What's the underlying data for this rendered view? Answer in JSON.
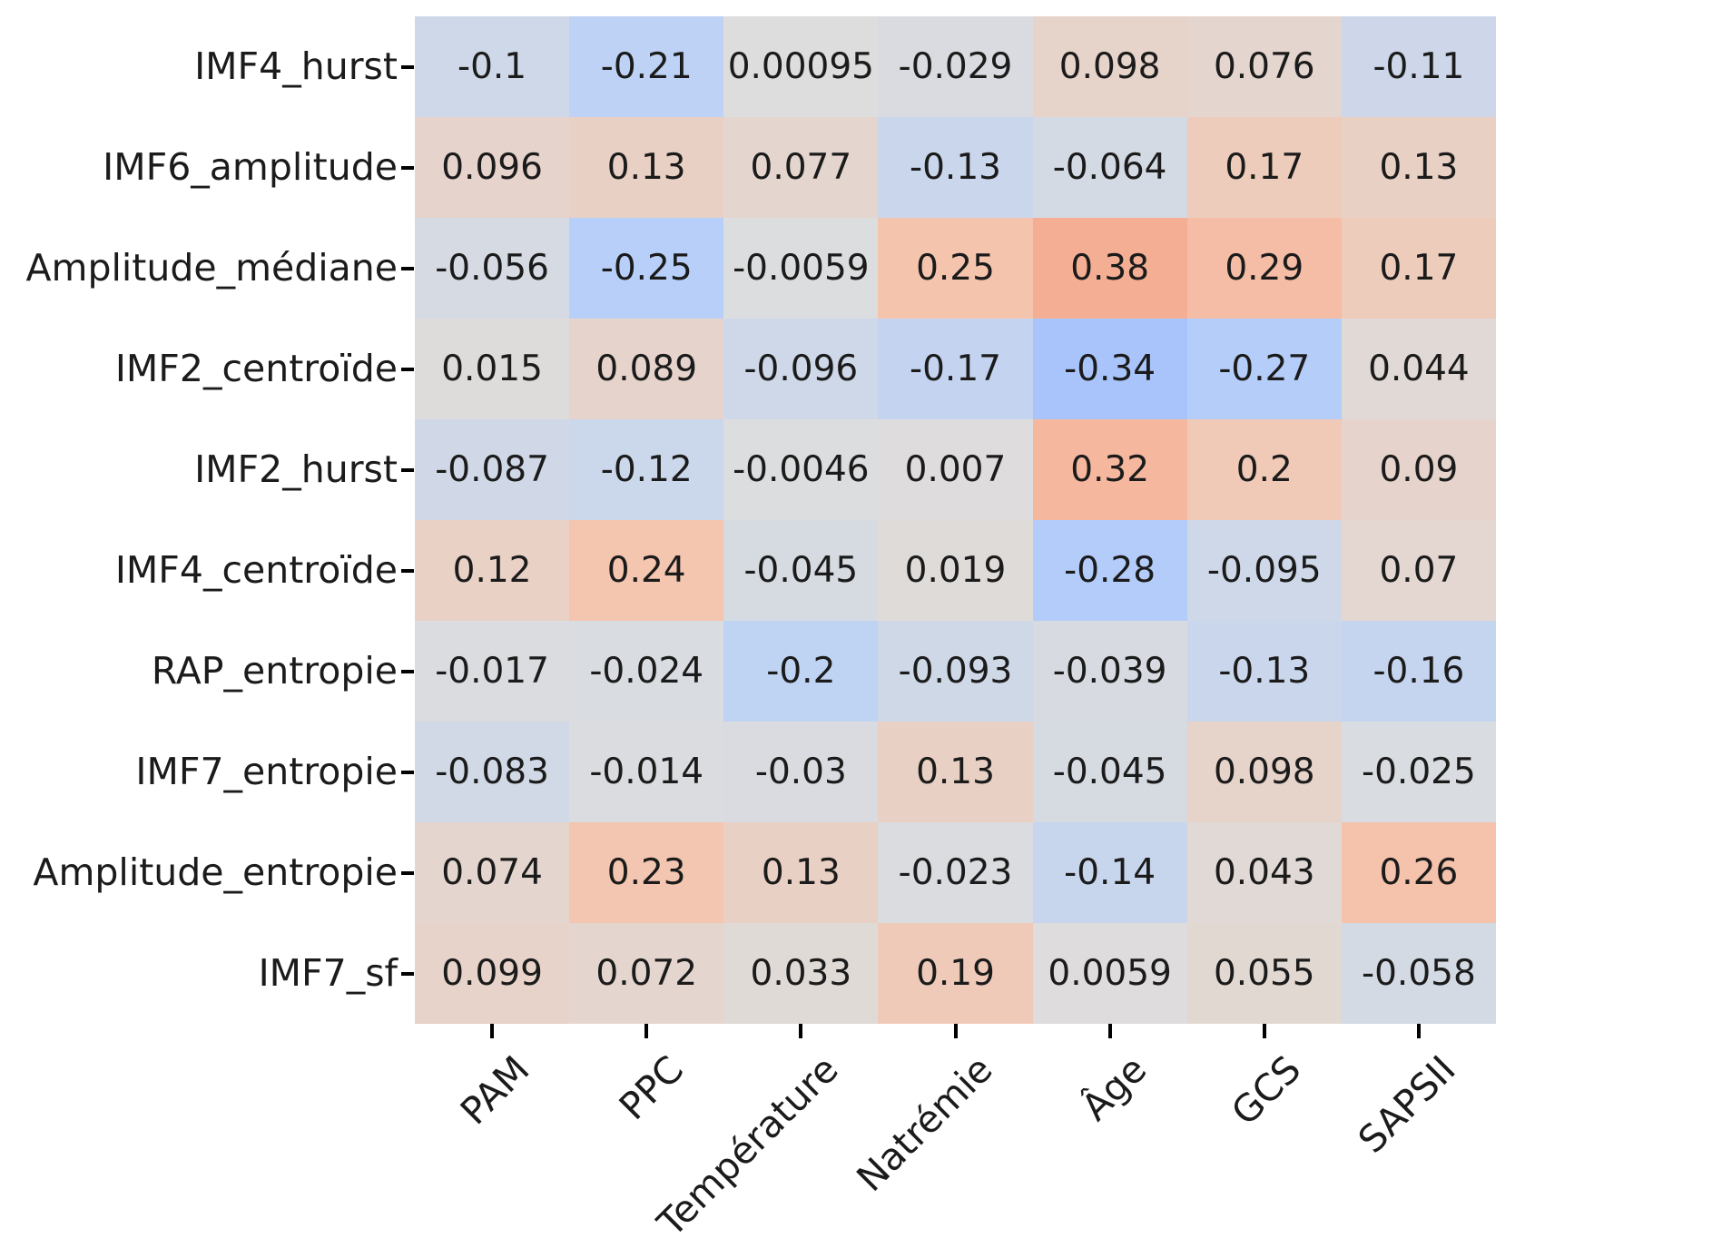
{
  "figure": {
    "background": "#ffffff",
    "text_color": "#1b1b1b",
    "tick_color": "#000000"
  },
  "chart_data": {
    "type": "heatmap",
    "title": "",
    "xlabel": "",
    "ylabel": "",
    "rows": [
      "IMF4_hurst",
      "IMF6_amplitude",
      "Amplitude_médiane",
      "IMF2_centroïde",
      "IMF2_hurst",
      "IMF4_centroïde",
      "RAP_entropie",
      "IMF7_entropie",
      "Amplitude_entropie",
      "IMF7_sf"
    ],
    "columns": [
      "PAM",
      "PPC",
      "Température",
      "Natrémie",
      "Âge",
      "GCS",
      "SAPSII"
    ],
    "values": [
      [
        "-0.1",
        "-0.21",
        "0.00095",
        "-0.029",
        "0.098",
        "0.076",
        "-0.11"
      ],
      [
        "0.096",
        "0.13",
        "0.077",
        "-0.13",
        "-0.064",
        "0.17",
        "0.13"
      ],
      [
        "-0.056",
        "-0.25",
        "-0.0059",
        "0.25",
        "0.38",
        "0.29",
        "0.17"
      ],
      [
        "0.015",
        "0.089",
        "-0.096",
        "-0.17",
        "-0.34",
        "-0.27",
        "0.044"
      ],
      [
        "-0.087",
        "-0.12",
        "-0.0046",
        "0.007",
        "0.32",
        "0.2",
        "0.09"
      ],
      [
        "0.12",
        "0.24",
        "-0.045",
        "0.019",
        "-0.28",
        "-0.095",
        "0.07"
      ],
      [
        "-0.017",
        "-0.024",
        "-0.2",
        "-0.093",
        "-0.039",
        "-0.13",
        "-0.16"
      ],
      [
        "-0.083",
        "-0.014",
        "-0.03",
        "0.13",
        "-0.045",
        "0.098",
        "-0.025"
      ],
      [
        "0.074",
        "0.23",
        "0.13",
        "-0.023",
        "-0.14",
        "0.043",
        "0.26"
      ],
      [
        "0.099",
        "0.072",
        "0.033",
        "0.19",
        "0.0059",
        "0.055",
        "-0.058"
      ]
    ],
    "annotations_shown": true,
    "legend_position": "none",
    "grid": false,
    "colormap": {
      "name": "coolwarm",
      "vmin": -1,
      "vmax": 1,
      "stops": [
        "#3B4CC0",
        "#6282EA",
        "#8DB0FE",
        "#B8D0F9",
        "#DDDDDD",
        "#F5C4AD",
        "#F49A7B",
        "#DE604D",
        "#B40426"
      ]
    }
  }
}
